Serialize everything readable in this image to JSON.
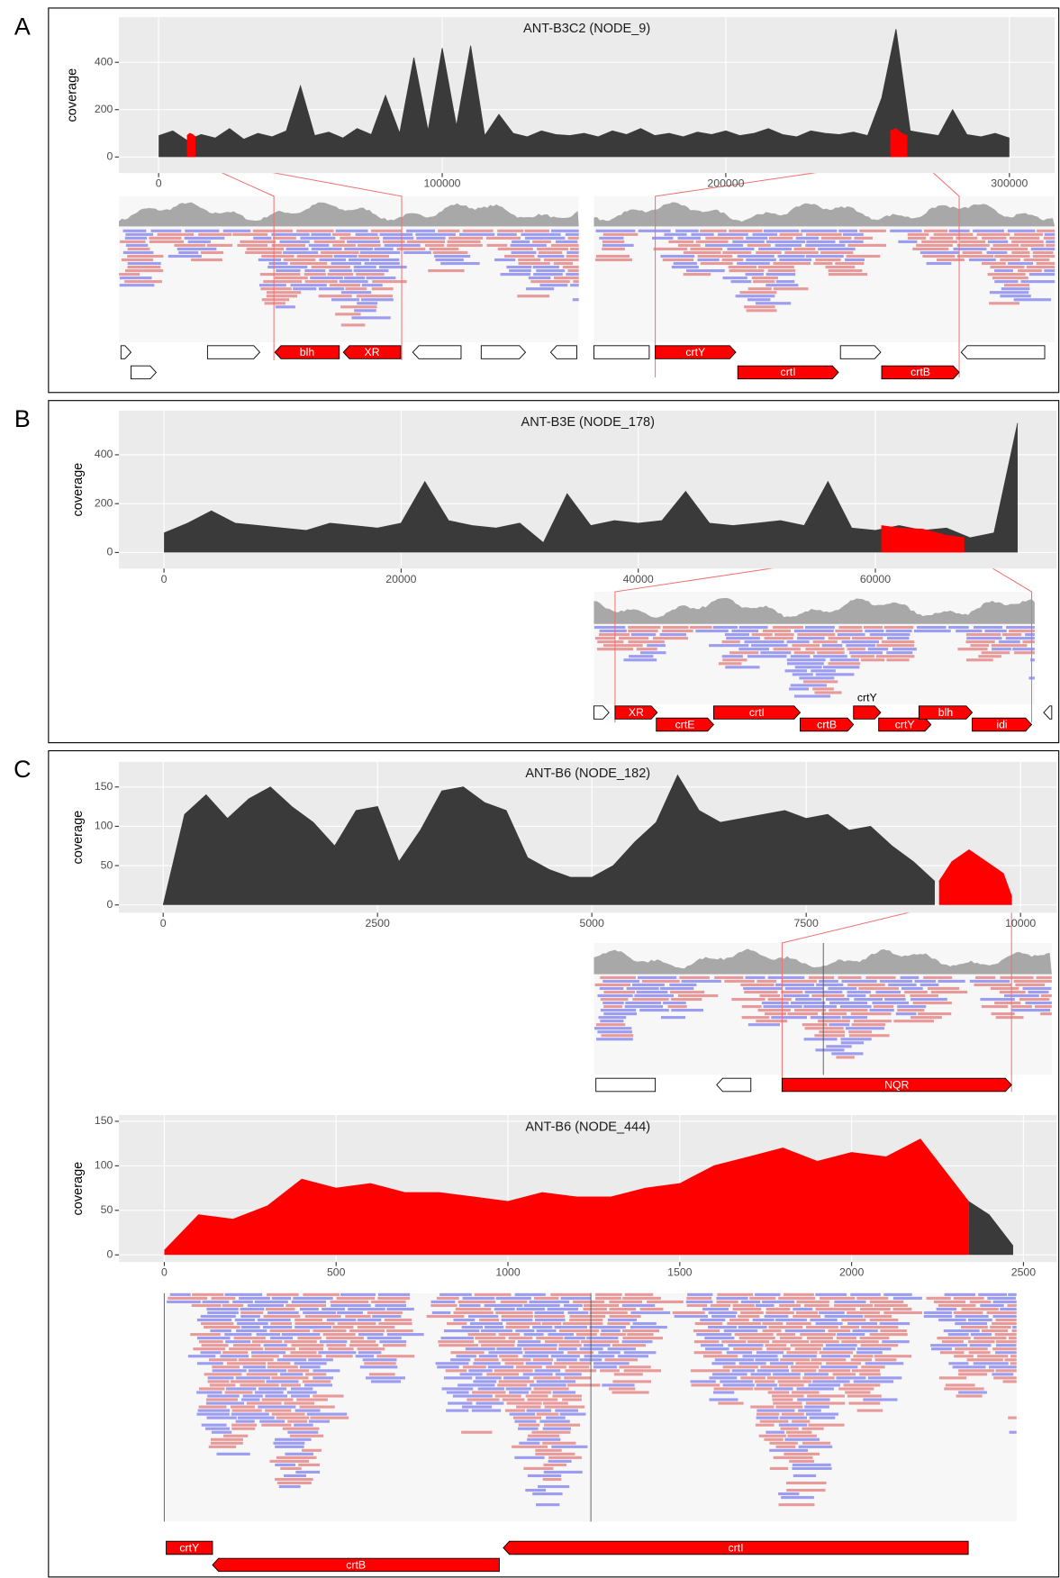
{
  "panels": [
    "A",
    "B",
    "C"
  ],
  "chart_data": [
    {
      "type": "area",
      "title": "ANT-B3C2 (NODE_9)",
      "ylabel": "coverage",
      "grid": true,
      "xlim": [
        -14000,
        316000
      ],
      "ylim": [
        -68,
        591
      ],
      "xticks": [
        0,
        100000,
        200000,
        300000
      ],
      "yticks": [
        0,
        200,
        400
      ],
      "series": [
        {
          "color": "#3a3a3a",
          "x": [
            0,
            5000,
            10000,
            15000,
            20000,
            25000,
            30000,
            35000,
            40000,
            45000,
            50000,
            55000,
            60000,
            65000,
            70000,
            75000,
            80000,
            85000,
            90000,
            95000,
            100000,
            105000,
            110000,
            115000,
            120000,
            125000,
            130000,
            135000,
            140000,
            145000,
            150000,
            155000,
            160000,
            165000,
            170000,
            175000,
            180000,
            185000,
            190000,
            195000,
            200000,
            205000,
            210000,
            215000,
            220000,
            225000,
            230000,
            235000,
            240000,
            245000,
            250000,
            255000,
            260000,
            265000,
            270000,
            275000,
            280000,
            285000,
            290000,
            295000,
            300000
          ],
          "values": [
            90,
            110,
            70,
            95,
            80,
            120,
            75,
            100,
            85,
            110,
            300,
            90,
            105,
            80,
            120,
            95,
            260,
            100,
            420,
            110,
            460,
            130,
            470,
            90,
            180,
            100,
            85,
            110,
            95,
            90,
            100,
            85,
            110,
            95,
            120,
            90,
            100,
            85,
            105,
            95,
            110,
            90,
            100,
            120,
            95,
            85,
            110,
            100,
            95,
            105,
            90,
            250,
            540,
            110,
            100,
            90,
            200,
            95,
            85,
            100,
            80
          ]
        },
        {
          "color": "#ff0000",
          "x": [
            10000,
            11000,
            12000,
            13000
          ],
          "values": [
            90,
            100,
            95,
            85
          ]
        },
        {
          "color": "#ff0000",
          "x": [
            258000,
            260000,
            262000,
            264000
          ],
          "values": [
            110,
            120,
            100,
            90
          ]
        }
      ],
      "genes": [
        "blh",
        "XR",
        "crtY",
        "crtI",
        "crtB"
      ]
    },
    {
      "type": "area",
      "title": "ANT-B3E (NODE_178)",
      "ylabel": "coverage",
      "grid": true,
      "xlim": [
        -3800,
        75300
      ],
      "ylim": [
        -66,
        581
      ],
      "xticks": [
        0,
        20000,
        40000,
        60000
      ],
      "yticks": [
        0,
        200,
        400
      ],
      "series": [
        {
          "color": "#3a3a3a",
          "x": [
            0,
            2000,
            4000,
            6000,
            8000,
            10000,
            12000,
            14000,
            16000,
            18000,
            20000,
            22000,
            24000,
            26000,
            28000,
            30000,
            32000,
            34000,
            36000,
            38000,
            40000,
            42000,
            44000,
            46000,
            48000,
            50000,
            52000,
            54000,
            56000,
            58000,
            60000,
            62000,
            64000,
            66000,
            68000,
            70000,
            72000
          ],
          "values": [
            80,
            120,
            170,
            120,
            110,
            100,
            90,
            120,
            110,
            100,
            120,
            290,
            130,
            110,
            100,
            120,
            40,
            240,
            110,
            130,
            120,
            130,
            250,
            120,
            110,
            120,
            130,
            110,
            290,
            100,
            90,
            110,
            90,
            100,
            60,
            80,
            530
          ]
        },
        {
          "color": "#ff0000",
          "x": [
            60500,
            62000,
            64000,
            66000,
            67500
          ],
          "values": [
            110,
            100,
            95,
            70,
            60
          ]
        }
      ],
      "genes": [
        "XR",
        "crtE",
        "crtI",
        "crtB",
        "crtY",
        "crtY",
        "blh",
        "idi"
      ]
    },
    {
      "type": "area",
      "title": "ANT-B6 (NODE_182)",
      "ylabel": "coverage",
      "grid": true,
      "xlim": [
        -516,
        10423
      ],
      "ylim": [
        -10,
        182
      ],
      "xticks": [
        0,
        2500,
        5000,
        7500,
        10000
      ],
      "yticks": [
        0,
        50,
        100,
        150
      ],
      "series": [
        {
          "color": "#3a3a3a",
          "x": [
            0,
            250,
            500,
            750,
            1000,
            1250,
            1500,
            1750,
            2000,
            2250,
            2500,
            2750,
            3000,
            3250,
            3500,
            3750,
            4000,
            4250,
            4500,
            4750,
            5000,
            5250,
            5500,
            5750,
            6000,
            6250,
            6500,
            6750,
            7000,
            7250,
            7500,
            7750,
            8000,
            8250,
            8500,
            8750,
            9000
          ],
          "values": [
            0,
            115,
            140,
            110,
            135,
            150,
            125,
            105,
            75,
            120,
            125,
            55,
            95,
            145,
            150,
            130,
            120,
            60,
            45,
            35,
            35,
            50,
            80,
            105,
            165,
            120,
            105,
            110,
            115,
            120,
            110,
            115,
            95,
            100,
            75,
            55,
            30
          ]
        },
        {
          "color": "#ff0000",
          "x": [
            9050,
            9200,
            9400,
            9600,
            9800,
            9900
          ],
          "values": [
            30,
            55,
            70,
            55,
            40,
            10
          ]
        }
      ],
      "genes": [
        "NQR"
      ]
    },
    {
      "type": "area",
      "title": "ANT-B6 (NODE_444)",
      "ylabel": "coverage",
      "grid": true,
      "xlim": [
        -132,
        2597
      ],
      "ylim": [
        -8,
        157
      ],
      "xticks": [
        0,
        500,
        1000,
        1500,
        2000,
        2500
      ],
      "yticks": [
        0,
        50,
        100,
        150
      ],
      "series": [
        {
          "color": "#ff0000",
          "x": [
            0,
            100,
            200,
            300,
            400,
            500,
            600,
            700,
            800,
            900,
            1000,
            1100,
            1200,
            1300,
            1400,
            1500,
            1600,
            1700,
            1800,
            1900,
            2000,
            2100,
            2200,
            2300,
            2340
          ],
          "values": [
            5,
            45,
            40,
            55,
            85,
            75,
            80,
            70,
            70,
            65,
            60,
            70,
            65,
            65,
            75,
            80,
            100,
            110,
            120,
            105,
            115,
            110,
            130,
            80,
            60
          ]
        },
        {
          "color": "#3a3a3a",
          "x": [
            2340,
            2400,
            2470
          ],
          "values": [
            60,
            45,
            10
          ]
        }
      ],
      "genes": [
        "crtY",
        "crtB",
        "crtI"
      ]
    }
  ]
}
